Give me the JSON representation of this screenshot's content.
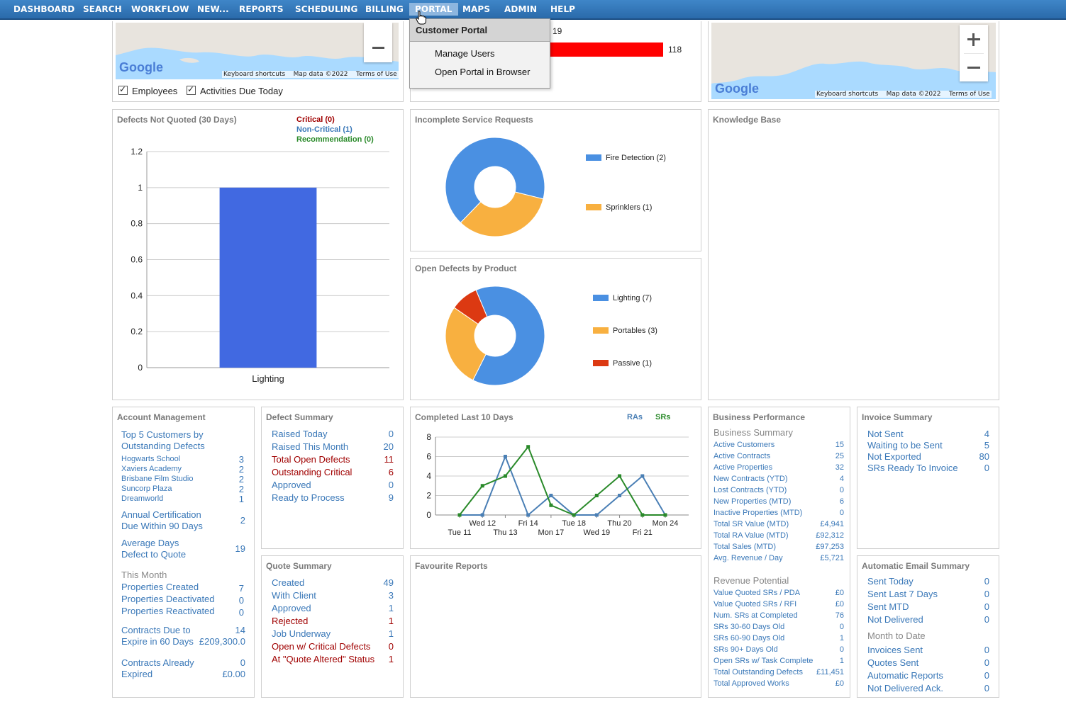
{
  "nav": {
    "items": [
      "DASHBOARD",
      "SEARCH",
      "WORKFLOW",
      "NEW...",
      "REPORTS",
      "SCHEDULING",
      "BILLING",
      "PORTAL",
      "MAPS",
      "ADMIN",
      "HELP"
    ],
    "active": "PORTAL"
  },
  "portal_menu": {
    "header": "Customer Portal",
    "items": [
      "Manage Users",
      "Open Portal in Browser"
    ]
  },
  "map_left": {
    "attribution": {
      "google": "Google",
      "shortcuts": "Keyboard shortcuts",
      "mapdata": "Map data ©2022",
      "terms": "Terms of Use"
    },
    "checkboxes": [
      {
        "label": "Employees",
        "checked": true
      },
      {
        "label": "Activities Due Today",
        "checked": true
      }
    ],
    "icons": [
      "zoom-out-icon"
    ]
  },
  "top_middle_bars": {
    "values": [
      19,
      118
    ],
    "bar_color": "#ff0000"
  },
  "map_right": {
    "attribution": {
      "google": "Google",
      "shortcuts": "Keyboard shortcuts",
      "mapdata": "Map data ©2022",
      "terms": "Terms of Use"
    },
    "icons": [
      "zoom-in-icon",
      "zoom-out-icon"
    ]
  },
  "defects_not_quoted": {
    "title": "Defects Not Quoted (30 Days)",
    "legend": [
      {
        "label": "Critical (0)",
        "color": "#a00000"
      },
      {
        "label": "Non-Critical (1)",
        "color": "#3a78b8"
      },
      {
        "label": "Recommendation (0)",
        "color": "#2a8a2a"
      }
    ],
    "chart_data": {
      "type": "bar",
      "categories": [
        "Lighting"
      ],
      "values": [
        1
      ],
      "ylim": [
        0,
        1.2
      ],
      "yticks": [
        "0",
        "0.2",
        "0.4",
        "0.6",
        "0.8",
        "1",
        "1.2"
      ],
      "bar_color": "#4169e1"
    }
  },
  "incomplete_sr": {
    "title": "Incomplete Service Requests",
    "chart_data": {
      "type": "pie",
      "slices": [
        {
          "label": "Fire Detection (2)",
          "value": 2,
          "color": "#4a90e2"
        },
        {
          "label": "Sprinklers (1)",
          "value": 1,
          "color": "#f8b040"
        }
      ]
    }
  },
  "knowledge_base": {
    "title": "Knowledge Base"
  },
  "open_defects_product": {
    "title": "Open Defects by Product",
    "chart_data": {
      "type": "pie",
      "slices": [
        {
          "label": "Lighting (7)",
          "value": 7,
          "color": "#4a90e2"
        },
        {
          "label": "Portables (3)",
          "value": 3,
          "color": "#f8b040"
        },
        {
          "label": "Passive (1)",
          "value": 1,
          "color": "#dc3912"
        }
      ]
    }
  },
  "account_mgmt": {
    "title": "Account Management",
    "top5_label": [
      "Top 5 Customers by",
      "Outstanding Defects"
    ],
    "customers": [
      {
        "name": "Hogwarts School",
        "value": "3"
      },
      {
        "name": "Xaviers Academy",
        "value": "2"
      },
      {
        "name": "Brisbane Film Studio",
        "value": "2"
      },
      {
        "name": "Suncorp Plaza",
        "value": "2"
      },
      {
        "name": "Dreamworld",
        "value": "1"
      }
    ],
    "annual_cert": {
      "lines": [
        "Annual Certification",
        "Due Within 90 Days"
      ],
      "value": "2"
    },
    "avg_days": {
      "lines": [
        "Average Days",
        "Defect to Quote"
      ],
      "value": "19"
    },
    "this_month": "This Month",
    "month_rows": [
      {
        "label": "Properties Created",
        "value": "7"
      },
      {
        "label": "Properties Deactivated",
        "value": "0"
      },
      {
        "label": "Properties Reactivated",
        "value": "0"
      }
    ],
    "contracts_due": {
      "lines": [
        "Contracts Due to",
        "Expire in 60 Days"
      ],
      "count": "14",
      "amount": "£209,300.0"
    },
    "contracts_expired": {
      "lines": [
        "Contracts Already",
        "Expired"
      ],
      "count": "0",
      "amount": "£0.00"
    }
  },
  "defect_summary": {
    "title": "Defect Summary",
    "rows": [
      {
        "label": "Raised Today",
        "value": "0",
        "red": false
      },
      {
        "label": "Raised This Month",
        "value": "20",
        "red": false
      },
      {
        "label": "Total Open Defects",
        "value": "11",
        "red": true
      },
      {
        "label": "Outstanding Critical",
        "value": "6",
        "red": true
      },
      {
        "label": "Approved",
        "value": "0",
        "red": false
      },
      {
        "label": "Ready to Process",
        "value": "9",
        "red": false
      }
    ]
  },
  "completed_10": {
    "title": "Completed Last 10 Days",
    "legend": [
      {
        "label": "RAs",
        "color": "#4a7fb5"
      },
      {
        "label": "SRs",
        "color": "#2a8a2a"
      }
    ],
    "chart_data": {
      "type": "line",
      "x": [
        "Tue 11",
        "Wed 12",
        "Thu 13",
        "Fri 14",
        "Mon 17",
        "Tue 18",
        "Wed 19",
        "Thu 20",
        "Fri 21",
        "Mon 24"
      ],
      "series": [
        {
          "name": "RAs",
          "values": [
            0,
            0,
            6,
            0,
            2,
            0,
            0,
            2,
            4,
            0
          ],
          "color": "#4a7fb5"
        },
        {
          "name": "SRs",
          "values": [
            0,
            3,
            4,
            7,
            1,
            0,
            2,
            4,
            0,
            0
          ],
          "color": "#2a8a2a"
        }
      ],
      "ylim": [
        0,
        8
      ],
      "yticks": [
        "0",
        "2",
        "4",
        "6",
        "8"
      ]
    }
  },
  "business_perf": {
    "title": "Business Performance",
    "subtitle1": "Business Summary",
    "rows1": [
      {
        "label": "Active Customers",
        "value": "15"
      },
      {
        "label": "Active Contracts",
        "value": "25"
      },
      {
        "label": "Active Properties",
        "value": "32"
      },
      {
        "label": "New Contracts (YTD)",
        "value": "4"
      },
      {
        "label": "Lost Contracts (YTD)",
        "value": "0"
      },
      {
        "label": "New Properties (MTD)",
        "value": "6"
      },
      {
        "label": "Inactive Properties (MTD)",
        "value": "0"
      },
      {
        "label": "Total SR Value (MTD)",
        "value": "£4,941"
      },
      {
        "label": "Total RA Value (MTD)",
        "value": "£92,312"
      },
      {
        "label": "Total Sales (MTD)",
        "value": "£97,253"
      },
      {
        "label": "Avg. Revenue / Day",
        "value": "£5,721"
      }
    ],
    "subtitle2": "Revenue Potential",
    "rows2": [
      {
        "label": "Value Quoted SRs / PDA",
        "value": "£0"
      },
      {
        "label": "Value Quoted SRs / RFI",
        "value": "£0"
      },
      {
        "label": "Num. SRs at Completed",
        "value": "76"
      },
      {
        "label": "SRs 30-60 Days Old",
        "value": "0"
      },
      {
        "label": "SRs 60-90 Days Old",
        "value": "1"
      },
      {
        "label": "SRs 90+ Days Old",
        "value": "0"
      },
      {
        "label": "Open SRs w/ Task Complete",
        "value": "1"
      },
      {
        "label": "Total Outstanding Defects",
        "value": "£11,451"
      },
      {
        "label": "Total Approved Works",
        "value": "£0"
      }
    ]
  },
  "invoice_summary": {
    "title": "Invoice Summary",
    "rows": [
      {
        "label": "Not Sent",
        "value": "4"
      },
      {
        "label": "Waiting to be Sent",
        "value": "5"
      },
      {
        "label": "Not Exported",
        "value": "80"
      },
      {
        "label": "SRs Ready To Invoice",
        "value": "0"
      }
    ]
  },
  "quote_summary": {
    "title": "Quote Summary",
    "rows": [
      {
        "label": "Created",
        "value": "49",
        "red": false
      },
      {
        "label": "With Client",
        "value": "3",
        "red": false
      },
      {
        "label": "Approved",
        "value": "1",
        "red": false
      },
      {
        "label": "Rejected",
        "value": "1",
        "red": true
      },
      {
        "label": "Job Underway",
        "value": "1",
        "red": false
      },
      {
        "label": "Open w/ Critical Defects",
        "value": "0",
        "red": true
      },
      {
        "label": "At \"Quote Altered\" Status",
        "value": "1",
        "red": true
      }
    ]
  },
  "favourite_reports": {
    "title": "Favourite Reports"
  },
  "auto_email": {
    "title": "Automatic Email Summary",
    "rows1": [
      {
        "label": "Sent Today",
        "value": "0"
      },
      {
        "label": "Sent Last 7 Days",
        "value": "0"
      },
      {
        "label": "Sent MTD",
        "value": "0"
      },
      {
        "label": "Not Delivered",
        "value": "0"
      }
    ],
    "subtitle": "Month to Date",
    "rows2": [
      {
        "label": "Invoices Sent",
        "value": "0"
      },
      {
        "label": "Quotes Sent",
        "value": "0"
      },
      {
        "label": "Automatic Reports",
        "value": "0"
      },
      {
        "label": "Not Delivered Ack.",
        "value": "0"
      }
    ]
  }
}
